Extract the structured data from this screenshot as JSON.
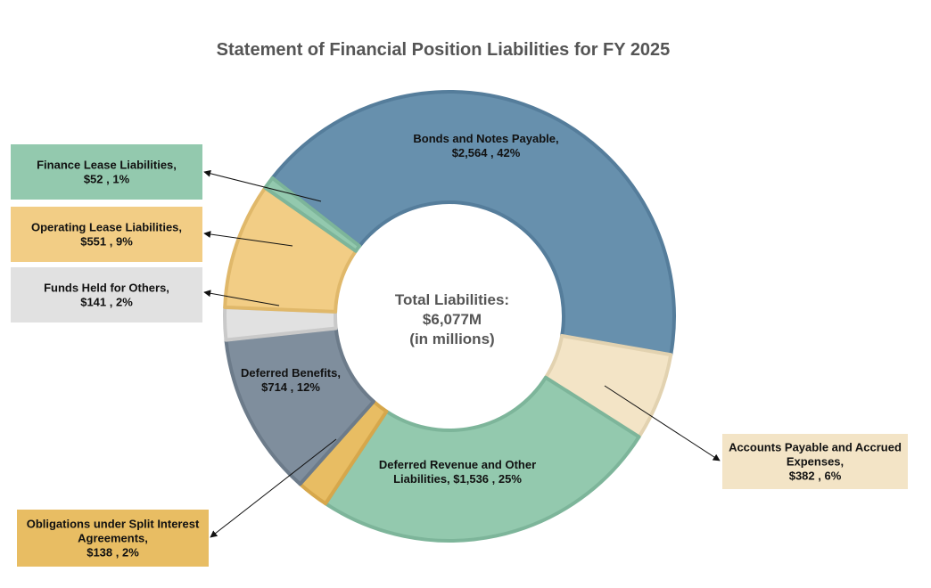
{
  "chart_data": {
    "type": "pie",
    "title": "Statement of Financial Position Liabilities for FY 2025",
    "center_label": {
      "line1": "Total Liabilities:",
      "line2": "$6,077M",
      "line3": "(in millions)"
    },
    "slices": [
      {
        "key": "bonds",
        "value": 2564,
        "color": "#6790ad",
        "border": "#557d9b",
        "label_lines": [
          "Bonds and Notes Payable,",
          "$2,564 , 42%"
        ]
      },
      {
        "key": "accounts-payable",
        "value": 382,
        "color": "#f3e4c6",
        "border": "#e2d2b0",
        "label_lines": [
          "Accounts Payable and Accrued",
          "Expenses,",
          "$382 , 6%"
        ]
      },
      {
        "key": "deferred-revenue",
        "value": 1536,
        "color": "#93c9ae",
        "border": "#7db59a",
        "label_lines": [
          "Deferred Revenue and Other",
          "Liabilities,  $1,536 , 25%"
        ]
      },
      {
        "key": "split-interest",
        "value": 138,
        "color": "#e8bd63",
        "border": "#d6a74b",
        "label_lines": [
          "Obligations under Split Interest",
          "Agreements,",
          "$138 , 2%"
        ]
      },
      {
        "key": "deferred-benefits",
        "value": 714,
        "color": "#7f8e9d",
        "border": "#6c7b8a",
        "label_lines": [
          "Deferred Benefits,",
          "$714 , 12%"
        ]
      },
      {
        "key": "funds-held",
        "value": 141,
        "color": "#e1e1e1",
        "border": "#c9c9c9",
        "label_lines": [
          "Funds Held for Others,",
          "$141 , 2%"
        ]
      },
      {
        "key": "operating-lease",
        "value": 551,
        "color": "#f2cd85",
        "border": "#e0b86a",
        "label_lines": [
          "Operating Lease Liabilities,",
          "$551 , 9%"
        ]
      },
      {
        "key": "finance-lease",
        "value": 52,
        "color": "#93c9ae",
        "border": "#7db59a",
        "label_lines": [
          "Finance Lease Liabilities,",
          "$52 , 1%"
        ]
      }
    ]
  }
}
